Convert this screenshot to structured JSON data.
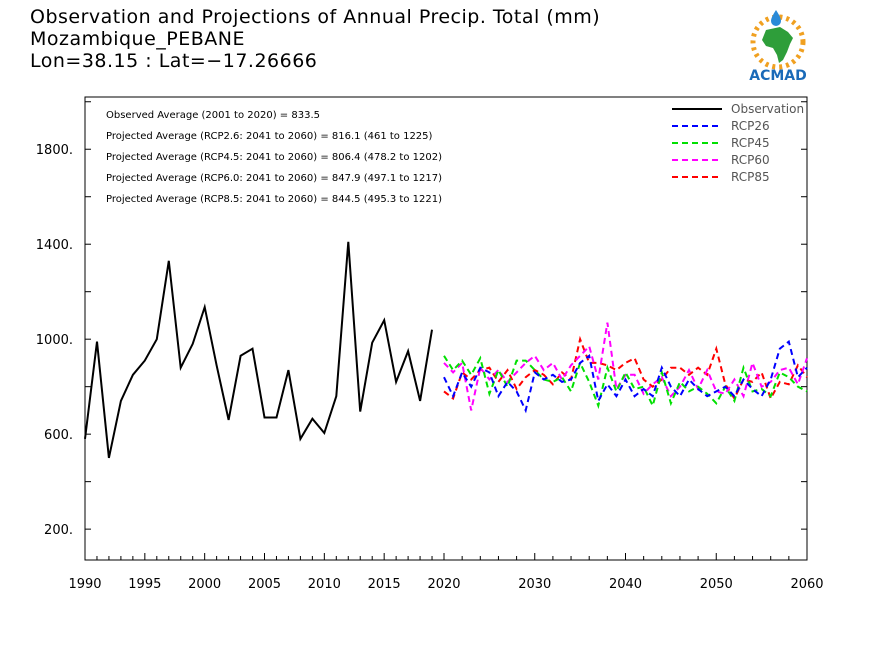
{
  "title": {
    "line1": "Observation and Projections of Annual Precip. Total (mm)",
    "line2": "Mozambique_PEBANE",
    "line3": "Lon=38.15 : Lat=−17.26666"
  },
  "logo": {
    "text": "ACMAD",
    "icon": "africa-map-logo"
  },
  "colors": {
    "observation": "#000000",
    "rcp26": "#0000ff",
    "rcp45": "#00e000",
    "rcp60": "#ff00ff",
    "rcp85": "#ff0000"
  },
  "annotations": [
    "Observed Average (2001 to 2020) = 833.5",
    "Projected Average (RCP2.6: 2041 to 2060) = 816.1 (461 to 1225)",
    "Projected Average (RCP4.5: 2041 to 2060) = 806.4 (478.2 to 1202)",
    "Projected Average (RCP6.0: 2041 to 2060) = 847.9 (497.1 to 1217)",
    "Projected Average (RCP8.5: 2041 to 2060) = 844.5 (495.3 to 1221)"
  ],
  "chart_data": {
    "type": "line",
    "xlabel": "",
    "ylabel": "",
    "xlim": [
      1990,
      2060
    ],
    "ylim": [
      70,
      2020
    ],
    "x_ticks": [
      "1990",
      "1995",
      "2000",
      "2005",
      "2010",
      "2015",
      "2020",
      "2030",
      "2040",
      "2050",
      "2060"
    ],
    "y_ticks": [
      "200.",
      "600.",
      "1000.",
      "1400.",
      "1800."
    ],
    "legend_position": "top-right",
    "series": [
      {
        "name": "Observation",
        "style": "solid",
        "color": "#000000",
        "x": [
          1990,
          1991,
          1992,
          1993,
          1994,
          1995,
          1996,
          1997,
          1998,
          1999,
          2000,
          2001,
          2002,
          2003,
          2004,
          2005,
          2006,
          2007,
          2008,
          2009,
          2010,
          2011,
          2012,
          2013,
          2014,
          2015,
          2016,
          2017,
          2018,
          2019,
          2020
        ],
        "values": [
          580,
          990,
          500,
          740,
          850,
          910,
          1000,
          1330,
          880,
          980,
          1135,
          890,
          660,
          930,
          960,
          670,
          670,
          870,
          580,
          665,
          605,
          760,
          1410,
          695,
          985,
          1080,
          820,
          950,
          740,
          1040,
          null
        ]
      },
      {
        "name": "RCP26",
        "style": "dashed",
        "color": "#0000ff",
        "x": [
          2020,
          2021,
          2022,
          2023,
          2024,
          2025,
          2026,
          2027,
          2028,
          2029,
          2030,
          2031,
          2032,
          2033,
          2034,
          2035,
          2036,
          2037,
          2038,
          2039,
          2040,
          2041,
          2042,
          2043,
          2044,
          2045,
          2046,
          2047,
          2048,
          2049,
          2050,
          2051,
          2052,
          2053,
          2054,
          2055,
          2056,
          2057,
          2058,
          2059,
          2060
        ],
        "values": [
          840,
          760,
          860,
          800,
          880,
          860,
          760,
          820,
          780,
          700,
          860,
          830,
          850,
          820,
          830,
          900,
          930,
          740,
          810,
          760,
          830,
          760,
          790,
          760,
          880,
          800,
          760,
          830,
          790,
          760,
          780,
          800,
          760,
          830,
          790,
          760,
          830,
          960,
          990,
          840,
          880
        ]
      },
      {
        "name": "RCP45",
        "style": "dashed",
        "color": "#00e000",
        "x": [
          2020,
          2021,
          2022,
          2023,
          2024,
          2025,
          2026,
          2027,
          2028,
          2029,
          2030,
          2031,
          2032,
          2033,
          2034,
          2035,
          2036,
          2037,
          2038,
          2039,
          2040,
          2041,
          2042,
          2043,
          2044,
          2045,
          2046,
          2047,
          2048,
          2049,
          2050,
          2051,
          2052,
          2053,
          2054,
          2055,
          2056,
          2057,
          2058,
          2059,
          2060
        ],
        "values": [
          930,
          870,
          910,
          850,
          920,
          770,
          870,
          800,
          910,
          910,
          870,
          830,
          820,
          840,
          780,
          900,
          820,
          720,
          880,
          780,
          860,
          790,
          800,
          720,
          860,
          730,
          820,
          780,
          800,
          770,
          730,
          800,
          740,
          880,
          780,
          790,
          760,
          860,
          840,
          800,
          780
        ]
      },
      {
        "name": "RCP60",
        "style": "dashed",
        "color": "#ff00ff",
        "x": [
          2020,
          2021,
          2022,
          2023,
          2024,
          2025,
          2026,
          2027,
          2028,
          2029,
          2030,
          2031,
          2032,
          2033,
          2034,
          2035,
          2036,
          2037,
          2038,
          2039,
          2040,
          2041,
          2042,
          2043,
          2044,
          2045,
          2046,
          2047,
          2048,
          2049,
          2050,
          2051,
          2052,
          2053,
          2054,
          2055,
          2056,
          2057,
          2058,
          2059,
          2060
        ],
        "values": [
          900,
          860,
          900,
          700,
          880,
          830,
          870,
          820,
          860,
          900,
          930,
          870,
          900,
          830,
          890,
          930,
          970,
          830,
          1070,
          790,
          850,
          850,
          770,
          810,
          840,
          760,
          800,
          870,
          790,
          870,
          780,
          770,
          830,
          760,
          900,
          800,
          820,
          870,
          880,
          810,
          920
        ]
      },
      {
        "name": "RCP85",
        "style": "dashed",
        "color": "#ff0000",
        "x": [
          2020,
          2021,
          2022,
          2023,
          2024,
          2025,
          2026,
          2027,
          2028,
          2029,
          2030,
          2031,
          2032,
          2033,
          2034,
          2035,
          2036,
          2037,
          2038,
          2039,
          2040,
          2041,
          2042,
          2043,
          2044,
          2045,
          2046,
          2047,
          2048,
          2049,
          2050,
          2051,
          2052,
          2053,
          2054,
          2055,
          2056,
          2057,
          2058,
          2059,
          2060
        ],
        "values": [
          780,
          750,
          860,
          830,
          870,
          880,
          820,
          870,
          790,
          840,
          870,
          850,
          810,
          860,
          830,
          1000,
          900,
          900,
          890,
          870,
          900,
          920,
          830,
          800,
          830,
          880,
          880,
          850,
          880,
          850,
          960,
          810,
          750,
          830,
          820,
          860,
          750,
          820,
          810,
          890,
          840
        ]
      }
    ]
  }
}
